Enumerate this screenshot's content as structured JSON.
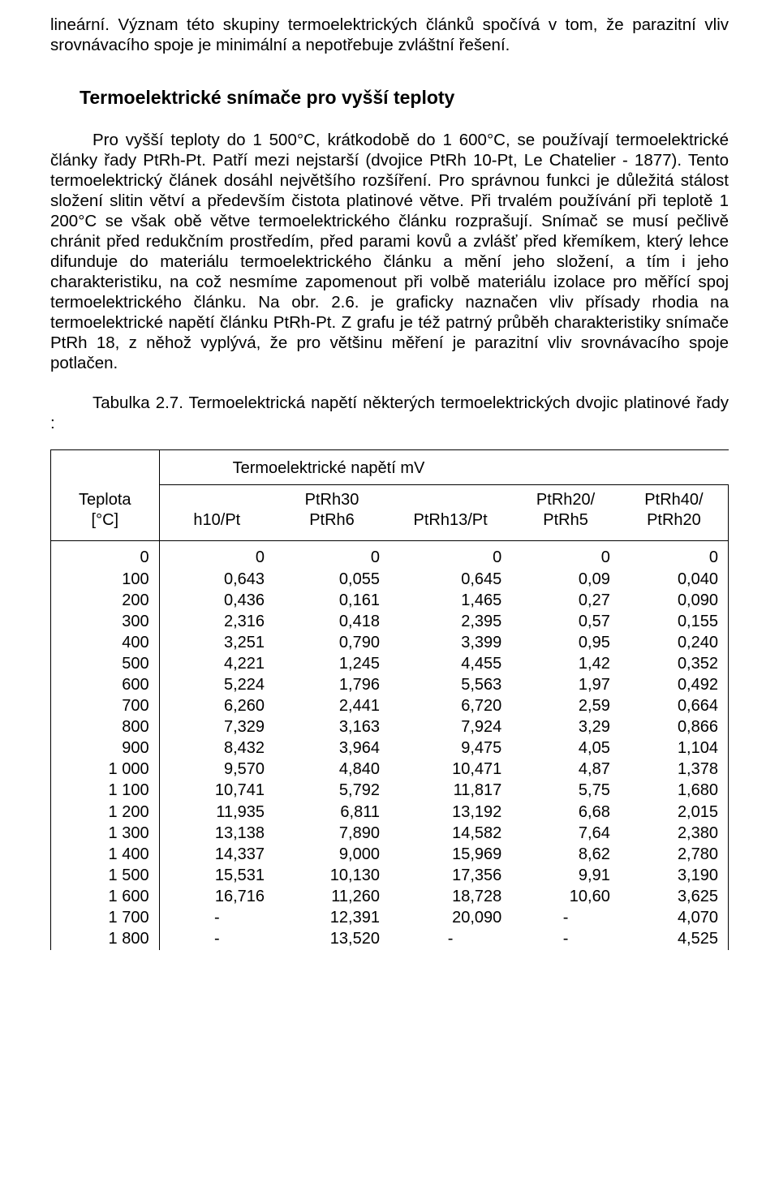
{
  "para1": "lineární. Význam této skupiny termoelektrických článků spočívá v tom, že parazitní vliv srovnávacího spoje je minimální a nepotřebuje zvláštní řešení.",
  "heading": "Termoelektrické snímače pro vyšší teploty",
  "para2": "Pro vyšší teploty do 1 500°C, krátkodobě do 1 600°C, se používají termoelektrické články řady PtRh-Pt. Patří mezi nejstarší (dvojice PtRh 10-Pt, Le Chatelier - 1877). Tento termoelektrický článek dosáhl největšího rozšíření. Pro správnou funkci je důležitá stálost složení slitin větví a především čistota platinové větve. Při trvalém používání při teplotě 1 200°C se však obě větve termoelektrického článku rozprašují. Snímač se musí pečlivě chránit před redukčním prostředím, před parami kovů a zvlášť před křemíkem, který lehce difunduje do materiálu termoelektrického článku a mění jeho složení, a tím i jeho charakteristiku, na což nesmíme zapomenout při volbě materiálu izolace pro měřící spoj termoelektrického článku. Na obr. 2.6. je graficky naznačen vliv přísady rhodia na termoelektrické napětí článku PtRh-Pt. Z grafu je též patrný průběh charakteristiky snímače PtRh 18, z něhož vyplývá, že pro většinu měření je parazitní vliv srovnávacího spoje potlačen.",
  "table_caption": "Tabulka 2.7. Termoelektrická napětí některých termoelektrických dvojic platinové řady :",
  "table": {
    "span_title": "Termoelektrické napětí mV",
    "headers": {
      "temp_l1": "Teplota",
      "temp_l2": "[°C]",
      "c1": "h10/Pt",
      "c2_l1": "PtRh30",
      "c2_l2": "PtRh6",
      "c3": "PtRh13/Pt",
      "c4_l1": "PtRh20/",
      "c4_l2": "PtRh5",
      "c5_l1": "PtRh40/",
      "c5_l2": "PtRh20"
    },
    "rows": [
      [
        "0",
        "0",
        "0",
        "0",
        "0",
        "0"
      ],
      [
        "100",
        "0,643",
        "0,055",
        "0,645",
        "0,09",
        "0,040"
      ],
      [
        "200",
        "0,436",
        "0,161",
        "1,465",
        "0,27",
        "0,090"
      ],
      [
        "300",
        "2,316",
        "0,418",
        "2,395",
        "0,57",
        "0,155"
      ],
      [
        "400",
        "3,251",
        "0,790",
        "3,399",
        "0,95",
        "0,240"
      ],
      [
        "500",
        "4,221",
        "1,245",
        "4,455",
        "1,42",
        "0,352"
      ],
      [
        "600",
        "5,224",
        "1,796",
        "5,563",
        "1,97",
        "0,492"
      ],
      [
        "700",
        "6,260",
        "2,441",
        "6,720",
        "2,59",
        "0,664"
      ],
      [
        "800",
        "7,329",
        "3,163",
        "7,924",
        "3,29",
        "0,866"
      ],
      [
        "900",
        "8,432",
        "3,964",
        "9,475",
        "4,05",
        "1,104"
      ],
      [
        "1 000",
        "9,570",
        "4,840",
        "10,471",
        "4,87",
        "1,378"
      ],
      [
        "1 100",
        "10,741",
        "5,792",
        "11,817",
        "5,75",
        "1,680"
      ],
      [
        "1 200",
        "11,935",
        "6,811",
        "13,192",
        "6,68",
        "2,015"
      ],
      [
        "1 300",
        "13,138",
        "7,890",
        "14,582",
        "7,64",
        "2,380"
      ],
      [
        "1 400",
        "14,337",
        "9,000",
        "15,969",
        "8,62",
        "2,780"
      ],
      [
        "1 500",
        "15,531",
        "10,130",
        "17,356",
        "9,91",
        "3,190"
      ],
      [
        "1 600",
        "16,716",
        "11,260",
        "18,728",
        "10,60",
        "3,625"
      ],
      [
        "1 700",
        "-",
        "12,391",
        "20,090",
        "-",
        "4,070"
      ],
      [
        "1 800",
        "-",
        "13,520",
        "-",
        "-",
        "4,525"
      ]
    ]
  }
}
